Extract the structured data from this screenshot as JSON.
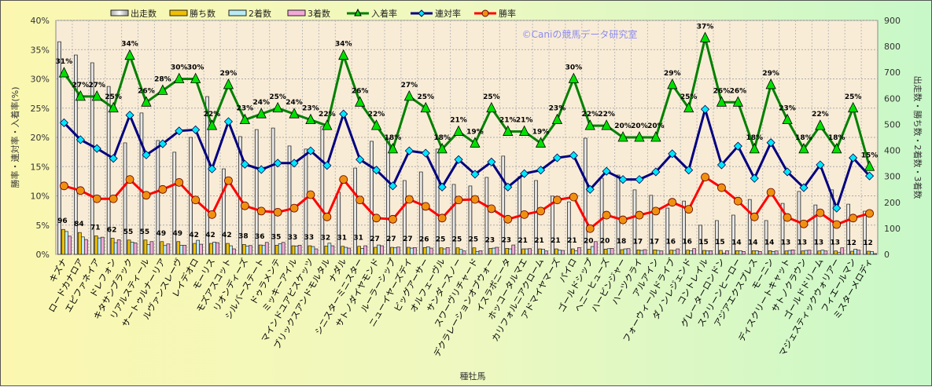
{
  "chart_data": {
    "type": "bar+line",
    "title": "",
    "xlabel": "種牡馬",
    "ylabel_left": "勝率・連対率・入着率(%)",
    "ylabel_right": "出走数・勝ち数・2着数・3着数",
    "ylim_left": [
      0,
      40
    ],
    "ylim_right": [
      0,
      900
    ],
    "left_ticks": [
      "0%",
      "5%",
      "10%",
      "15%",
      "20%",
      "25%",
      "30%",
      "35%",
      "40%"
    ],
    "right_ticks": [
      "0",
      "100",
      "200",
      "300",
      "400",
      "500",
      "600",
      "700",
      "800",
      "900"
    ],
    "grid": true,
    "legend_position": "top",
    "watermark": "©Caniの競馬データ研究室",
    "categories": [
      "キズナ",
      "ロードカナロア",
      "エピファネイア",
      "ドレフォン",
      "キタサンブラック",
      "リアルスティール",
      "サートゥルナーリア",
      "ルヴァンスレーヴ",
      "レイデオロ",
      "モーリス",
      "モズアスコット",
      "リオンディーズ",
      "シルバーステート",
      "ドゥラメンテ",
      "ミッキーアイル",
      "マインドユアビスケッツ",
      "ブリックスアンドモルタル",
      "ナダル",
      "シニスターミニスター",
      "サトノダイヤモンド",
      "ルーラーシップ",
      "ニューイヤーズデイ",
      "ビッグアーサー",
      "オルフェーヴル",
      "サンダースノー",
      "スワーヴリチャード",
      "デクラレーションオブウォー",
      "イスラボニータ",
      "ホッコータルマエ",
      "カリフォルニアクローム",
      "アドマイヤマーズ",
      "パイロ",
      "ゴールドシップ",
      "ヘニーヒューズ",
      "ハービンジャー",
      "ハーツクライ",
      "アルアイン",
      "フォーウィールドライブ",
      "ダノンレジェンド",
      "コントレイル",
      "グレーターロンドン",
      "スクリーンヒーロー",
      "アジアエクスプレス",
      "モーニン",
      "ディスクリートキャット",
      "サトノクラウン",
      "ゴールドドリーム",
      "マジェスティックウォリアー",
      "フィエールマン",
      "ミスターメロディ"
    ],
    "bar_series": [
      {
        "name": "出走数",
        "axis": "right",
        "color": "#e8e8e8",
        "values": [
          818,
          767,
          737,
          646,
          429,
          544,
          438,
          393,
          450,
          607,
          329,
          453,
          480,
          486,
          417,
          405,
          492,
          239,
          332,
          435,
          447,
          284,
          317,
          405,
          269,
          263,
          296,
          378,
          299,
          284,
          224,
          202,
          447,
          293,
          305,
          248,
          227,
          178,
          205,
          112,
          130,
          151,
          211,
          130,
          196,
          242,
          190,
          248,
          193,
          166
        ]
      },
      {
        "name": "勝ち数",
        "axis": "right",
        "color": "#f0c000",
        "values": [
          96,
          84,
          71,
          62,
          55,
          55,
          49,
          49,
          42,
          42,
          42,
          38,
          36,
          35,
          33,
          33,
          32,
          31,
          31,
          27,
          27,
          27,
          26,
          25,
          25,
          25,
          23,
          23,
          21,
          21,
          21,
          21,
          20,
          20,
          18,
          17,
          17,
          16,
          16,
          15,
          15,
          14,
          14,
          14,
          13,
          13,
          13,
          13,
          12,
          12
        ]
      },
      {
        "name": "2着数",
        "axis": "right",
        "color": "#b8ecf4",
        "values": [
          88,
          67,
          63,
          45,
          47,
          38,
          34,
          35,
          54,
          47,
          33,
          32,
          34,
          41,
          32,
          30,
          43,
          27,
          23,
          36,
          25,
          24,
          29,
          21,
          19,
          11,
          24,
          21,
          21,
          20,
          16,
          14,
          30,
          22,
          21,
          15,
          15,
          15,
          14,
          13,
          5,
          14,
          14,
          11,
          15,
          15,
          16,
          7,
          20,
          11
        ]
      },
      {
        "name": "3着数",
        "axis": "right",
        "color": "#f4a8d8",
        "values": [
          70,
          57,
          66,
          56,
          44,
          49,
          40,
          35,
          39,
          45,
          21,
          34,
          46,
          46,
          35,
          21,
          33,
          24,
          33,
          33,
          28,
          26,
          24,
          26,
          13,
          14,
          27,
          36,
          22,
          13,
          15,
          26,
          49,
          23,
          22,
          18,
          13,
          21,
          22,
          14,
          14,
          11,
          11,
          13,
          17,
          16,
          13,
          25,
          16,
          3
        ]
      }
    ],
    "win_count_labels": [
      "96",
      "84",
      "71",
      "62",
      "55",
      "55",
      "49",
      "49",
      "42",
      "42",
      "42",
      "38",
      "36",
      "35",
      "33",
      "33",
      "32",
      "31",
      "31",
      "27",
      "27",
      "27",
      "26",
      "25",
      "25",
      "25",
      "23",
      "23",
      "21",
      "21",
      "21",
      "21",
      "20",
      "20",
      "18",
      "17",
      "17",
      "16",
      "16",
      "15",
      "15",
      "14",
      "14",
      "14",
      "13",
      "13",
      "13",
      "13",
      "12",
      "12"
    ],
    "line_series": [
      {
        "name": "入着率",
        "axis": "left",
        "color": "#008000",
        "marker": "triangle",
        "marker_color": "#00e000",
        "values": [
          31,
          27,
          27,
          25,
          34,
          26,
          28,
          30,
          30,
          22,
          29,
          23,
          24,
          25,
          24,
          23,
          22,
          34,
          26,
          22,
          18,
          27,
          25,
          18,
          21,
          19,
          25,
          21,
          21,
          19,
          23,
          30,
          22,
          22,
          20,
          20,
          20,
          29,
          25,
          37,
          26,
          26,
          18,
          29,
          23,
          18,
          22,
          18,
          25,
          15
        ]
      },
      {
        "name": "連対率",
        "axis": "left",
        "color": "#000080",
        "marker": "diamond",
        "marker_color": "#00e8f8",
        "values": [
          22.5,
          19.6,
          18.1,
          16.4,
          23.8,
          17.0,
          18.9,
          21.1,
          21.3,
          14.6,
          22.7,
          15.4,
          14.5,
          15.6,
          15.6,
          17.7,
          15.2,
          24.0,
          16.2,
          14.4,
          11.7,
          17.7,
          17.3,
          11.5,
          16.2,
          13.7,
          15.8,
          11.5,
          13.8,
          14.4,
          16.5,
          16.9,
          11.1,
          14.2,
          12.8,
          12.8,
          14.1,
          17.2,
          14.4,
          24.8,
          15.3,
          18.5,
          13.0,
          19.1,
          14.1,
          11.4,
          15.3,
          7.9,
          16.5,
          13.4
        ]
      },
      {
        "name": "勝率",
        "axis": "left",
        "color": "#ff0000",
        "marker": "circle",
        "marker_color": "#f09010",
        "values": [
          11.7,
          10.9,
          9.5,
          9.5,
          12.8,
          10.1,
          11.1,
          12.3,
          9.3,
          6.8,
          12.6,
          8.3,
          7.4,
          7.2,
          7.9,
          10.2,
          6.4,
          12.8,
          9.3,
          6.2,
          6.0,
          9.4,
          8.2,
          6.2,
          9.3,
          9.4,
          7.8,
          6.0,
          6.8,
          7.4,
          9.3,
          9.8,
          4.4,
          6.7,
          5.9,
          6.7,
          7.4,
          8.9,
          7.7,
          13.2,
          11.4,
          9.1,
          6.4,
          10.6,
          6.3,
          5.2,
          7.1,
          5.1,
          6.2,
          7.0
        ]
      }
    ],
    "place_rate_labels": [
      "31%",
      "27%",
      "27%",
      "25%",
      "34%",
      "26%",
      "28%",
      "30%",
      "30%",
      "22%",
      "29%",
      "23%",
      "24%",
      "25%",
      "24%",
      "23%",
      "22%",
      "34%",
      "26%",
      "22%",
      "18%",
      "27%",
      "25%",
      "18%",
      "21%",
      "19%",
      "25%",
      "21%",
      "21%",
      "19%",
      "23%",
      "30%",
      "22%",
      "22%",
      "20%",
      "20%",
      "20%",
      "29%",
      "25%",
      "37%",
      "26%",
      "26%",
      "18%",
      "29%",
      "23%",
      "18%",
      "22%",
      "18%",
      "25%",
      "15%"
    ]
  }
}
